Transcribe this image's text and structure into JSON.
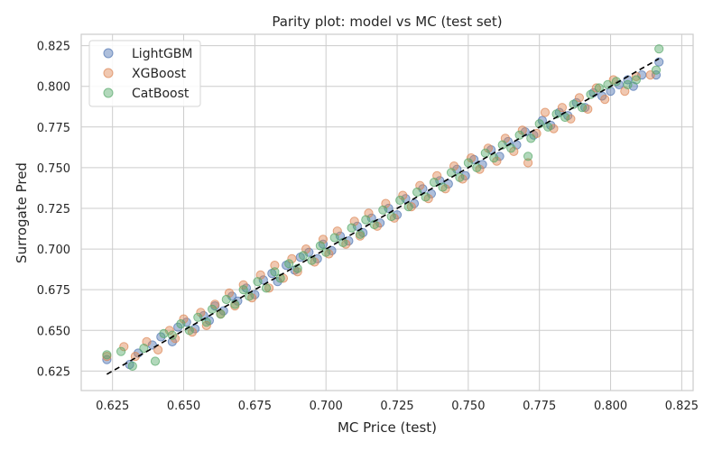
{
  "chart_data": {
    "type": "scatter",
    "title": "Parity plot: model vs MC (test set)",
    "xlabel": "MC Price (test)",
    "ylabel": "Surrogate Pred",
    "xlim": [
      0.614,
      0.829
    ],
    "ylim": [
      0.613,
      0.832
    ],
    "xticks": [
      "0.625",
      "0.650",
      "0.675",
      "0.700",
      "0.725",
      "0.750",
      "0.775",
      "0.800",
      "0.825"
    ],
    "yticks": [
      "0.625",
      "0.650",
      "0.675",
      "0.700",
      "0.725",
      "0.750",
      "0.775",
      "0.800",
      "0.825"
    ],
    "grid": true,
    "legend_position": "top-left",
    "parity_line": {
      "x": [
        0.623,
        0.817
      ],
      "y": [
        0.623,
        0.817
      ],
      "style": "dashed",
      "color": "#000000"
    },
    "series": [
      {
        "name": "LightGBM",
        "color": "#4c72b0",
        "points": [
          [
            0.623,
            0.632
          ],
          [
            0.631,
            0.629
          ],
          [
            0.634,
            0.636
          ],
          [
            0.639,
            0.641
          ],
          [
            0.642,
            0.646
          ],
          [
            0.646,
            0.643
          ],
          [
            0.648,
            0.652
          ],
          [
            0.651,
            0.655
          ],
          [
            0.654,
            0.651
          ],
          [
            0.657,
            0.659
          ],
          [
            0.659,
            0.656
          ],
          [
            0.661,
            0.665
          ],
          [
            0.664,
            0.662
          ],
          [
            0.667,
            0.671
          ],
          [
            0.669,
            0.668
          ],
          [
            0.672,
            0.676
          ],
          [
            0.675,
            0.672
          ],
          [
            0.678,
            0.681
          ],
          [
            0.681,
            0.685
          ],
          [
            0.683,
            0.68
          ],
          [
            0.686,
            0.69
          ],
          [
            0.689,
            0.687
          ],
          [
            0.691,
            0.695
          ],
          [
            0.694,
            0.698
          ],
          [
            0.697,
            0.694
          ],
          [
            0.699,
            0.703
          ],
          [
            0.702,
            0.699
          ],
          [
            0.705,
            0.708
          ],
          [
            0.708,
            0.705
          ],
          [
            0.711,
            0.714
          ],
          [
            0.713,
            0.71
          ],
          [
            0.716,
            0.719
          ],
          [
            0.719,
            0.716
          ],
          [
            0.722,
            0.725
          ],
          [
            0.725,
            0.721
          ],
          [
            0.728,
            0.731
          ],
          [
            0.731,
            0.728
          ],
          [
            0.734,
            0.737
          ],
          [
            0.737,
            0.734
          ],
          [
            0.74,
            0.742
          ],
          [
            0.743,
            0.74
          ],
          [
            0.746,
            0.749
          ],
          [
            0.749,
            0.745
          ],
          [
            0.752,
            0.755
          ],
          [
            0.755,
            0.752
          ],
          [
            0.758,
            0.761
          ],
          [
            0.761,
            0.757
          ],
          [
            0.764,
            0.766
          ],
          [
            0.767,
            0.764
          ],
          [
            0.77,
            0.772
          ],
          [
            0.773,
            0.77
          ],
          [
            0.776,
            0.779
          ],
          [
            0.779,
            0.776
          ],
          [
            0.782,
            0.784
          ],
          [
            0.785,
            0.782
          ],
          [
            0.788,
            0.79
          ],
          [
            0.791,
            0.787
          ],
          [
            0.794,
            0.796
          ],
          [
            0.797,
            0.794
          ],
          [
            0.8,
            0.797
          ],
          [
            0.803,
            0.801
          ],
          [
            0.806,
            0.804
          ],
          [
            0.808,
            0.8
          ],
          [
            0.811,
            0.807
          ],
          [
            0.816,
            0.807
          ],
          [
            0.817,
            0.815
          ]
        ]
      },
      {
        "name": "XGBoost",
        "color": "#dd8452",
        "points": [
          [
            0.623,
            0.634
          ],
          [
            0.629,
            0.64
          ],
          [
            0.633,
            0.634
          ],
          [
            0.637,
            0.643
          ],
          [
            0.641,
            0.638
          ],
          [
            0.645,
            0.65
          ],
          [
            0.647,
            0.645
          ],
          [
            0.65,
            0.657
          ],
          [
            0.653,
            0.649
          ],
          [
            0.656,
            0.661
          ],
          [
            0.658,
            0.653
          ],
          [
            0.661,
            0.666
          ],
          [
            0.663,
            0.66
          ],
          [
            0.666,
            0.673
          ],
          [
            0.668,
            0.665
          ],
          [
            0.671,
            0.678
          ],
          [
            0.674,
            0.67
          ],
          [
            0.677,
            0.684
          ],
          [
            0.68,
            0.676
          ],
          [
            0.682,
            0.69
          ],
          [
            0.685,
            0.682
          ],
          [
            0.688,
            0.694
          ],
          [
            0.69,
            0.686
          ],
          [
            0.693,
            0.7
          ],
          [
            0.696,
            0.692
          ],
          [
            0.699,
            0.706
          ],
          [
            0.701,
            0.697
          ],
          [
            0.704,
            0.711
          ],
          [
            0.707,
            0.703
          ],
          [
            0.71,
            0.717
          ],
          [
            0.712,
            0.708
          ],
          [
            0.715,
            0.722
          ],
          [
            0.718,
            0.714
          ],
          [
            0.721,
            0.728
          ],
          [
            0.724,
            0.719
          ],
          [
            0.727,
            0.733
          ],
          [
            0.73,
            0.726
          ],
          [
            0.733,
            0.739
          ],
          [
            0.736,
            0.731
          ],
          [
            0.739,
            0.745
          ],
          [
            0.742,
            0.737
          ],
          [
            0.745,
            0.751
          ],
          [
            0.748,
            0.743
          ],
          [
            0.751,
            0.756
          ],
          [
            0.754,
            0.749
          ],
          [
            0.757,
            0.762
          ],
          [
            0.76,
            0.754
          ],
          [
            0.763,
            0.768
          ],
          [
            0.766,
            0.76
          ],
          [
            0.769,
            0.773
          ],
          [
            0.771,
            0.753
          ],
          [
            0.774,
            0.771
          ],
          [
            0.777,
            0.784
          ],
          [
            0.78,
            0.774
          ],
          [
            0.783,
            0.787
          ],
          [
            0.786,
            0.78
          ],
          [
            0.789,
            0.793
          ],
          [
            0.792,
            0.786
          ],
          [
            0.795,
            0.799
          ],
          [
            0.798,
            0.792
          ],
          [
            0.801,
            0.804
          ],
          [
            0.805,
            0.797
          ],
          [
            0.809,
            0.806
          ],
          [
            0.814,
            0.807
          ]
        ]
      },
      {
        "name": "CatBoost",
        "color": "#55a868",
        "points": [
          [
            0.623,
            0.635
          ],
          [
            0.628,
            0.637
          ],
          [
            0.632,
            0.628
          ],
          [
            0.636,
            0.639
          ],
          [
            0.64,
            0.631
          ],
          [
            0.643,
            0.648
          ],
          [
            0.646,
            0.647
          ],
          [
            0.649,
            0.654
          ],
          [
            0.652,
            0.65
          ],
          [
            0.655,
            0.658
          ],
          [
            0.658,
            0.655
          ],
          [
            0.66,
            0.663
          ],
          [
            0.663,
            0.66
          ],
          [
            0.665,
            0.669
          ],
          [
            0.668,
            0.666
          ],
          [
            0.671,
            0.675
          ],
          [
            0.673,
            0.671
          ],
          [
            0.676,
            0.68
          ],
          [
            0.679,
            0.676
          ],
          [
            0.682,
            0.686
          ],
          [
            0.684,
            0.682
          ],
          [
            0.687,
            0.691
          ],
          [
            0.69,
            0.688
          ],
          [
            0.692,
            0.696
          ],
          [
            0.695,
            0.693
          ],
          [
            0.698,
            0.702
          ],
          [
            0.7,
            0.698
          ],
          [
            0.703,
            0.707
          ],
          [
            0.706,
            0.704
          ],
          [
            0.709,
            0.713
          ],
          [
            0.712,
            0.709
          ],
          [
            0.714,
            0.718
          ],
          [
            0.717,
            0.715
          ],
          [
            0.72,
            0.724
          ],
          [
            0.723,
            0.72
          ],
          [
            0.726,
            0.73
          ],
          [
            0.729,
            0.726
          ],
          [
            0.732,
            0.735
          ],
          [
            0.735,
            0.732
          ],
          [
            0.738,
            0.741
          ],
          [
            0.741,
            0.738
          ],
          [
            0.744,
            0.747
          ],
          [
            0.747,
            0.744
          ],
          [
            0.75,
            0.753
          ],
          [
            0.753,
            0.75
          ],
          [
            0.756,
            0.759
          ],
          [
            0.759,
            0.756
          ],
          [
            0.762,
            0.764
          ],
          [
            0.765,
            0.762
          ],
          [
            0.768,
            0.77
          ],
          [
            0.771,
            0.757
          ],
          [
            0.772,
            0.768
          ],
          [
            0.775,
            0.777
          ],
          [
            0.778,
            0.775
          ],
          [
            0.781,
            0.783
          ],
          [
            0.784,
            0.781
          ],
          [
            0.787,
            0.789
          ],
          [
            0.79,
            0.787
          ],
          [
            0.793,
            0.795
          ],
          [
            0.796,
            0.799
          ],
          [
            0.799,
            0.801
          ],
          [
            0.802,
            0.803
          ],
          [
            0.806,
            0.801
          ],
          [
            0.809,
            0.804
          ],
          [
            0.816,
            0.81
          ],
          [
            0.817,
            0.823
          ]
        ]
      }
    ]
  }
}
